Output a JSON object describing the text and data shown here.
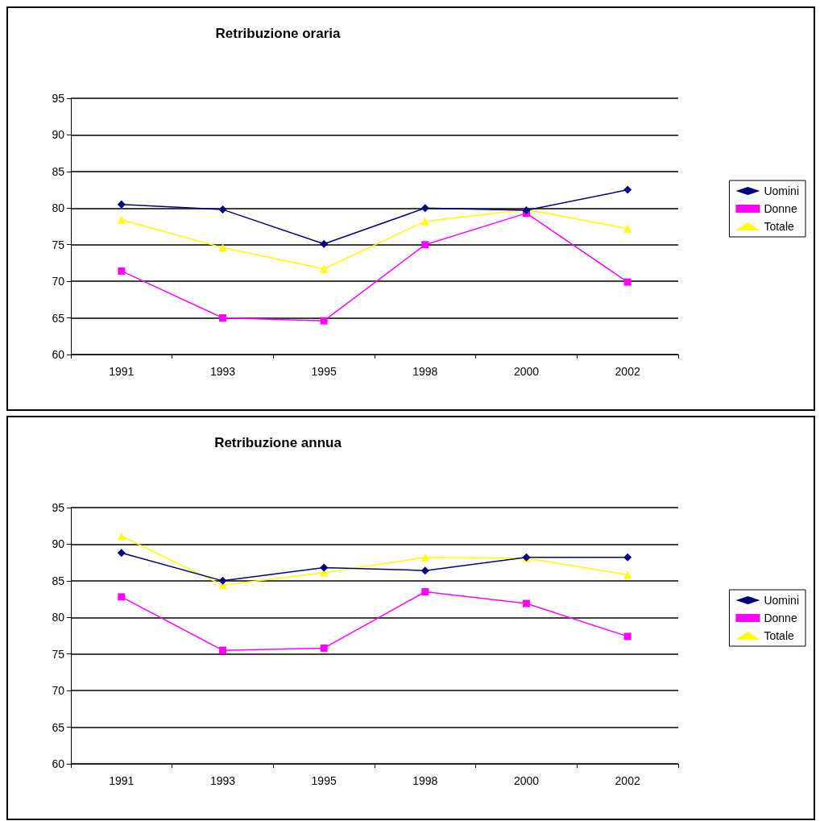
{
  "chart_data": [
    {
      "type": "line",
      "title": "Retribuzione oraria",
      "categories": [
        "1991",
        "1993",
        "1995",
        "1998",
        "2000",
        "2002"
      ],
      "ylim": [
        60,
        95
      ],
      "yticks": [
        60,
        65,
        70,
        75,
        80,
        85,
        90,
        95
      ],
      "grid": "y",
      "legend": "right",
      "series": [
        {
          "name": "Uomini",
          "color": "#000080",
          "marker": "diamond",
          "values": [
            80.5,
            79.8,
            75.1,
            80,
            79.7,
            82.5
          ]
        },
        {
          "name": "Donne",
          "color": "#ff00ff",
          "marker": "square",
          "values": [
            71.4,
            65.0,
            64.6,
            75.0,
            79.3,
            69.9
          ]
        },
        {
          "name": "Totale",
          "color": "#ffff00",
          "marker": "triangle",
          "values": [
            78.4,
            74.6,
            71.7,
            78.2,
            79.8,
            77.2
          ]
        }
      ]
    },
    {
      "type": "line",
      "title": "Retribuzione annua",
      "categories": [
        "1991",
        "1993",
        "1995",
        "1998",
        "2000",
        "2002"
      ],
      "ylim": [
        60,
        95
      ],
      "yticks": [
        60,
        65,
        70,
        75,
        80,
        85,
        90,
        95
      ],
      "grid": "y",
      "legend": "right",
      "series": [
        {
          "name": "Uomini",
          "color": "#000080",
          "marker": "diamond",
          "values": [
            88.8,
            85.0,
            86.8,
            86.4,
            88.2,
            88.2
          ]
        },
        {
          "name": "Donne",
          "color": "#ff00ff",
          "marker": "square",
          "values": [
            82.8,
            75.5,
            75.8,
            83.5,
            81.9,
            77.4
          ]
        },
        {
          "name": "Totale",
          "color": "#ffff00",
          "marker": "triangle",
          "values": [
            91.1,
            84.4,
            86.1,
            88.2,
            88.1,
            85.8
          ]
        }
      ]
    }
  ]
}
